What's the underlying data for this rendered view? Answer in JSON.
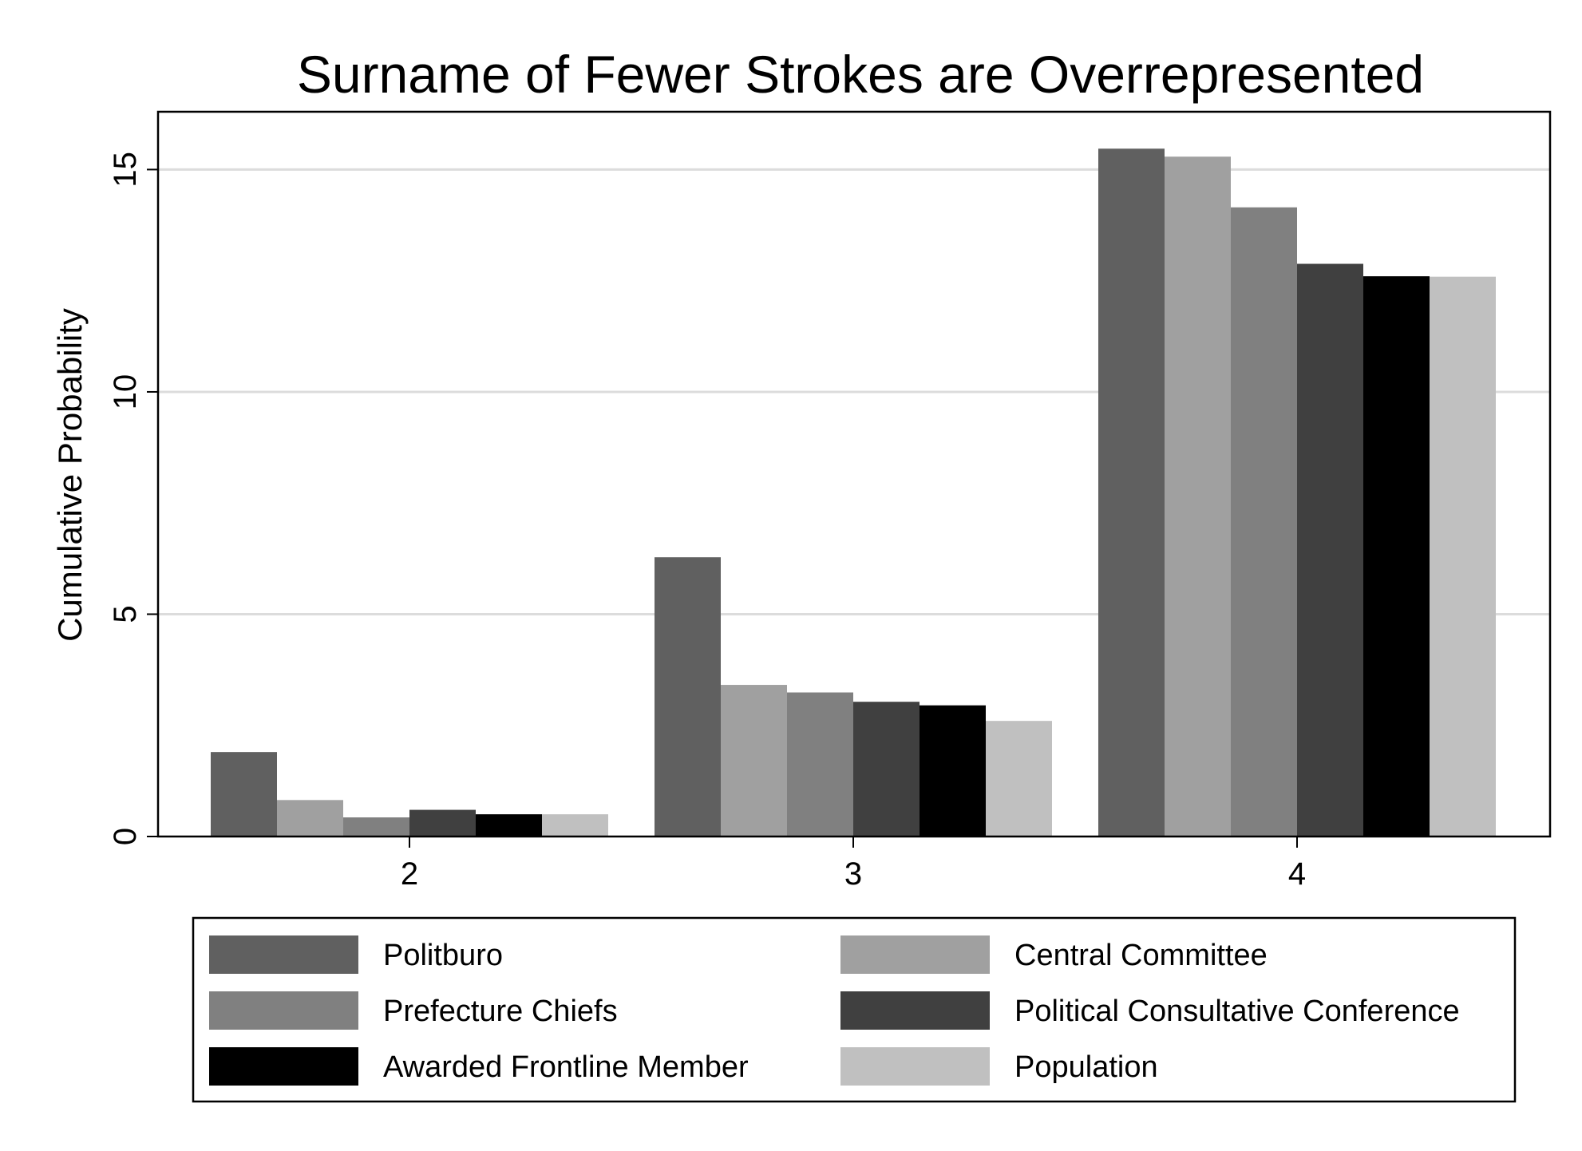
{
  "chart_data": {
    "type": "bar",
    "title": "Surname of Fewer Strokes are Overrepresented",
    "xlabel": "",
    "ylabel": "Cumulative Probability",
    "categories": [
      "2",
      "3",
      "4"
    ],
    "ylim": [
      0,
      16.3
    ],
    "yticks": [
      0,
      5,
      10,
      15
    ],
    "grid": true,
    "legend_position": "bottom",
    "series": [
      {
        "name": "Politburo",
        "color": "#606060",
        "values": [
          1.9,
          6.28,
          15.47
        ]
      },
      {
        "name": "Central Committee",
        "color": "#a0a0a0",
        "values": [
          0.82,
          3.41,
          15.29
        ]
      },
      {
        "name": "Prefecture Chiefs",
        "color": "#808080",
        "values": [
          0.43,
          3.24,
          14.15
        ]
      },
      {
        "name": "Political Consultative Conference",
        "color": "#404040",
        "values": [
          0.6,
          3.03,
          12.88
        ]
      },
      {
        "name": "Awarded Frontline Member",
        "color": "#000000",
        "values": [
          0.5,
          2.95,
          12.6
        ]
      },
      {
        "name": "Population",
        "color": "#c0c0c0",
        "values": [
          0.5,
          2.6,
          12.59
        ]
      }
    ]
  }
}
